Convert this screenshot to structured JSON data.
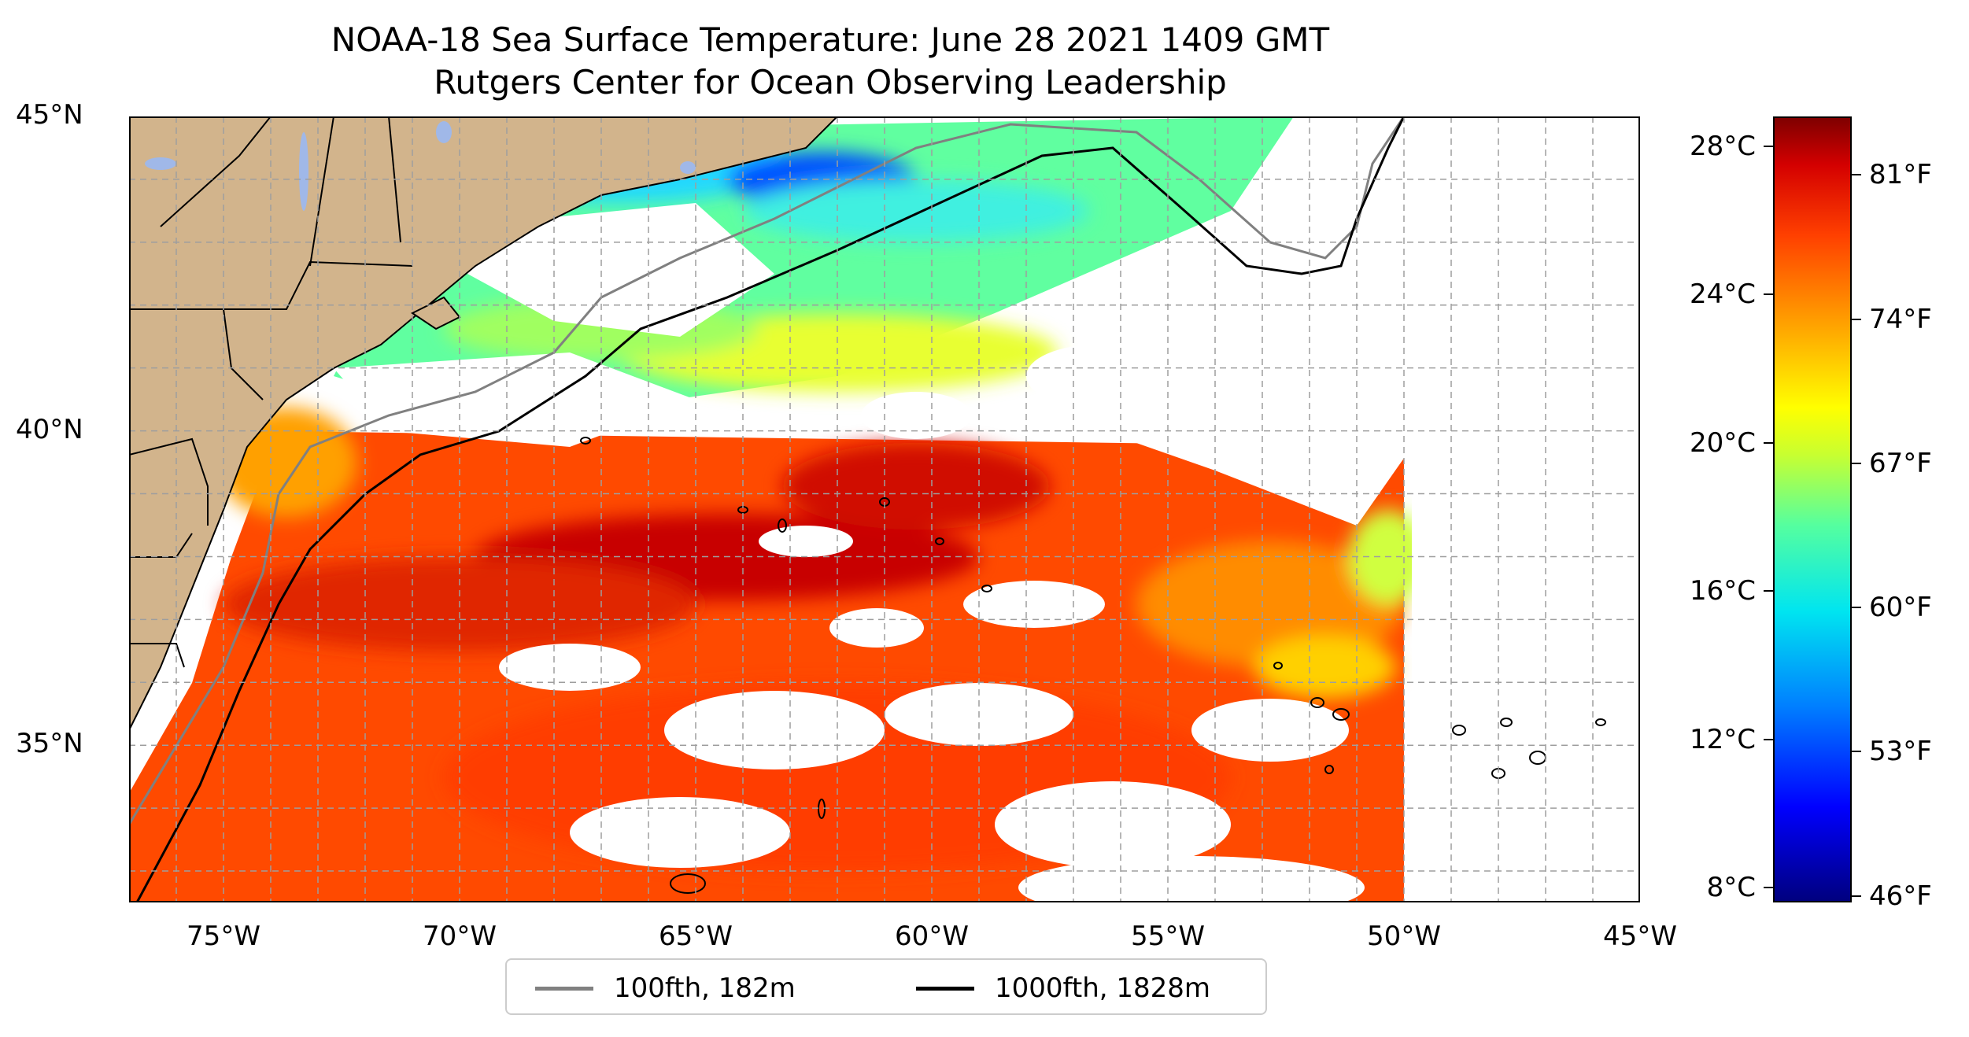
{
  "title": {
    "line1": "NOAA-18 Sea Surface Temperature: June 28 2021 1409 GMT",
    "line2": "Rutgers Center for Ocean Observing Leadership"
  },
  "map": {
    "type": "sea-surface-temperature",
    "extent": {
      "lon": [
        -77,
        -45
      ],
      "lat": [
        32.5,
        45
      ]
    },
    "gridlines": true,
    "land_color": "#d2b48c",
    "lake_color": "#a0b8e8",
    "lat_ticks": [
      {
        "value": 45,
        "label": "45°N"
      },
      {
        "value": 40,
        "label": "40°N"
      },
      {
        "value": 35,
        "label": "35°N"
      }
    ],
    "lon_ticks": [
      {
        "value": -75,
        "label": "75°W"
      },
      {
        "value": -70,
        "label": "70°W"
      },
      {
        "value": -65,
        "label": "65°W"
      },
      {
        "value": -60,
        "label": "60°W"
      },
      {
        "value": -55,
        "label": "55°W"
      },
      {
        "value": -50,
        "label": "50°W"
      },
      {
        "value": -45,
        "label": "45°W"
      }
    ]
  },
  "legend": {
    "placement": "bottom-center",
    "items": [
      {
        "label": "100fth, 182m",
        "color": "#808080"
      },
      {
        "label": "1000fth, 1828m",
        "color": "#000000"
      }
    ]
  },
  "colorbar": {
    "range_c": [
      7.6,
      28.8
    ],
    "celsius_ticks": [
      {
        "value": 28,
        "label": "28°C"
      },
      {
        "value": 24,
        "label": "24°C"
      },
      {
        "value": 20,
        "label": "20°C"
      },
      {
        "value": 16,
        "label": "16°C"
      },
      {
        "value": 12,
        "label": "12°C"
      },
      {
        "value": 8,
        "label": "8°C"
      }
    ],
    "fahrenheit_ticks": [
      {
        "value": 81,
        "label": "81°F"
      },
      {
        "value": 74,
        "label": "74°F"
      },
      {
        "value": 67,
        "label": "67°F"
      },
      {
        "value": 60,
        "label": "60°F"
      },
      {
        "value": 53,
        "label": "53°F"
      },
      {
        "value": 46,
        "label": "46°F"
      }
    ]
  }
}
